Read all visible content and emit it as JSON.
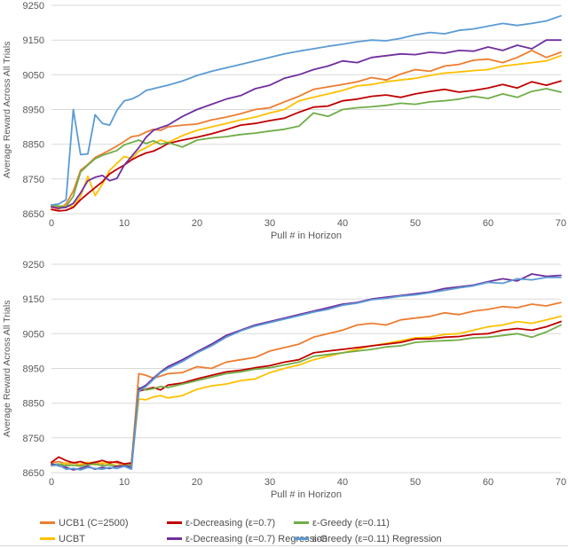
{
  "axis": {
    "tick_color": "#595959",
    "grid_color": "#d9d9d9",
    "label_color": "#595959"
  },
  "chart_data": [
    {
      "type": "line",
      "title": "",
      "xlabel": "Pull # in Horizon",
      "ylabel": "Average Reward Across All Trials",
      "xlim": [
        0,
        70
      ],
      "ylim": [
        8650,
        9250
      ],
      "xticks": [
        0,
        10,
        20,
        30,
        40,
        50,
        60,
        70
      ],
      "yticks": [
        8650,
        8750,
        8850,
        8950,
        9050,
        9150,
        9250
      ],
      "grid": "horizontal",
      "legend_position": "none",
      "x": [
        0,
        1,
        2,
        3,
        4,
        5,
        6,
        7,
        8,
        9,
        10,
        11,
        12,
        13,
        14,
        15,
        16,
        18,
        20,
        22,
        24,
        26,
        28,
        30,
        32,
        34,
        36,
        38,
        40,
        42,
        44,
        46,
        48,
        50,
        52,
        54,
        56,
        58,
        60,
        62,
        64,
        66,
        68,
        70
      ],
      "series": [
        {
          "name": "UCB1 (C=2500)",
          "color": "#ED7D31",
          "values": [
            8668,
            8663,
            8678,
            8715,
            8775,
            8792,
            8812,
            8822,
            8833,
            8845,
            8858,
            8872,
            8875,
            8885,
            8893,
            8890,
            8900,
            8905,
            8908,
            8920,
            8928,
            8938,
            8950,
            8955,
            8972,
            8988,
            9008,
            9015,
            9022,
            9030,
            9042,
            9035,
            9052,
            9065,
            9060,
            9075,
            9080,
            9092,
            9095,
            9085,
            9100,
            9120,
            9100,
            9115
          ]
        },
        {
          "name": "UCBT",
          "color": "#FFC000",
          "values": [
            8672,
            8670,
            8673,
            8670,
            8700,
            8758,
            8702,
            8735,
            8775,
            8795,
            8815,
            8808,
            8830,
            8840,
            8852,
            8862,
            8855,
            8875,
            8890,
            8900,
            8910,
            8920,
            8928,
            8940,
            8950,
            8975,
            8985,
            8995,
            9005,
            9018,
            9022,
            9030,
            9035,
            9040,
            9048,
            9055,
            9058,
            9062,
            9065,
            9075,
            9080,
            9085,
            9090,
            9105
          ]
        },
        {
          "name": "ε-Decreasing (ε=0.7)",
          "color": "#C00000",
          "values": [
            8662,
            8658,
            8660,
            8668,
            8690,
            8708,
            8725,
            8742,
            8765,
            8778,
            8790,
            8805,
            8816,
            8825,
            8830,
            8840,
            8852,
            8862,
            8870,
            8880,
            8892,
            8905,
            8910,
            8918,
            8925,
            8942,
            8957,
            8960,
            8975,
            8980,
            8988,
            8992,
            8985,
            8995,
            9002,
            9008,
            9000,
            9005,
            9012,
            9022,
            9012,
            9030,
            9020,
            9032
          ]
        },
        {
          "name": "ε-Greedy (ε=0.11)",
          "color": "#70AD47",
          "values": [
            8675,
            8672,
            8670,
            8700,
            8770,
            8790,
            8808,
            8818,
            8825,
            8832,
            8848,
            8855,
            8862,
            8852,
            8860,
            8850,
            8855,
            8842,
            8862,
            8868,
            8872,
            8878,
            8882,
            8888,
            8893,
            8902,
            8940,
            8930,
            8950,
            8955,
            8958,
            8962,
            8968,
            8965,
            8972,
            8975,
            8980,
            8988,
            8982,
            8995,
            8985,
            9002,
            9010,
            9000
          ]
        },
        {
          "name": "ε-Decreasing (ε=0.7) Regression",
          "color": "#7030A0",
          "values": [
            8670,
            8666,
            8668,
            8680,
            8710,
            8745,
            8755,
            8760,
            8745,
            8752,
            8790,
            8815,
            8840,
            8870,
            8890,
            8898,
            8905,
            8930,
            8950,
            8965,
            8980,
            8990,
            9010,
            9020,
            9040,
            9050,
            9065,
            9075,
            9090,
            9085,
            9100,
            9105,
            9110,
            9108,
            9115,
            9112,
            9120,
            9118,
            9130,
            9120,
            9135,
            9125,
            9150,
            9150
          ]
        },
        {
          "name": "ε-Greedy (ε=0.11) Regression",
          "color": "#5B9BD5",
          "values": [
            8675,
            8678,
            8690,
            8950,
            8820,
            8822,
            8935,
            8910,
            8905,
            8948,
            8975,
            8980,
            8990,
            9005,
            9010,
            9015,
            9020,
            9032,
            9048,
            9060,
            9070,
            9080,
            9090,
            9100,
            9110,
            9118,
            9125,
            9132,
            9138,
            9145,
            9150,
            9148,
            9155,
            9165,
            9172,
            9168,
            9178,
            9182,
            9190,
            9198,
            9192,
            9198,
            9205,
            9220
          ]
        }
      ]
    },
    {
      "type": "line",
      "title": "",
      "xlabel": "Pull # in Horizon",
      "ylabel": "Average Reward Across All Trials",
      "xlim": [
        0,
        70
      ],
      "ylim": [
        8650,
        9250
      ],
      "xticks": [
        0,
        10,
        20,
        30,
        40,
        50,
        60,
        70
      ],
      "yticks": [
        8650,
        8750,
        8850,
        8950,
        9050,
        9150,
        9250
      ],
      "grid": "horizontal",
      "legend_position": "bottom",
      "x": [
        0,
        1,
        2,
        3,
        4,
        5,
        6,
        7,
        8,
        9,
        10,
        11,
        12,
        13,
        14,
        15,
        16,
        18,
        20,
        22,
        24,
        26,
        28,
        30,
        32,
        34,
        36,
        38,
        40,
        42,
        44,
        46,
        48,
        50,
        52,
        54,
        56,
        58,
        60,
        62,
        64,
        66,
        68,
        70
      ],
      "series": [
        {
          "name": "UCB1 (C=2500)",
          "color": "#ED7D31",
          "values": [
            8678,
            8682,
            8675,
            8680,
            8672,
            8678,
            8680,
            8675,
            8682,
            8678,
            8672,
            8675,
            8935,
            8930,
            8922,
            8928,
            8935,
            8938,
            8955,
            8950,
            8968,
            8975,
            8982,
            9000,
            9010,
            9020,
            9040,
            9050,
            9060,
            9075,
            9080,
            9075,
            9090,
            9095,
            9100,
            9110,
            9105,
            9115,
            9120,
            9128,
            9125,
            9135,
            9130,
            9140
          ]
        },
        {
          "name": "UCBT",
          "color": "#FFC000",
          "values": [
            8675,
            8672,
            8678,
            8670,
            8675,
            8680,
            8672,
            8678,
            8675,
            8670,
            8673,
            8670,
            8862,
            8860,
            8868,
            8872,
            8865,
            8872,
            8890,
            8900,
            8905,
            8915,
            8920,
            8938,
            8950,
            8960,
            8975,
            8985,
            8995,
            9005,
            9015,
            9022,
            9030,
            9038,
            9040,
            9048,
            9050,
            9060,
            9070,
            9075,
            9085,
            9080,
            9090,
            9100
          ]
        },
        {
          "name": "ε-Decreasing (ε=0.7)",
          "color": "#C00000",
          "values": [
            8680,
            8695,
            8685,
            8678,
            8682,
            8675,
            8680,
            8685,
            8678,
            8682,
            8675,
            8678,
            8885,
            8890,
            8895,
            8888,
            8902,
            8908,
            8920,
            8930,
            8940,
            8945,
            8952,
            8958,
            8968,
            8975,
            8995,
            9000,
            9005,
            9010,
            9015,
            9020,
            9025,
            9035,
            9035,
            9040,
            9042,
            9048,
            9050,
            9060,
            9065,
            9060,
            9070,
            9085
          ]
        },
        {
          "name": "ε-Greedy (ε=0.11)",
          "color": "#70AD47",
          "values": [
            8672,
            8675,
            8670,
            8672,
            8668,
            8672,
            8675,
            8670,
            8672,
            8668,
            8670,
            8672,
            8895,
            8888,
            8892,
            8898,
            8895,
            8905,
            8915,
            8925,
            8935,
            8940,
            8948,
            8952,
            8960,
            8968,
            8985,
            8990,
            8995,
            9000,
            9005,
            9012,
            9015,
            9025,
            9028,
            9030,
            9032,
            9038,
            9040,
            9045,
            9050,
            9040,
            9055,
            9075
          ]
        },
        {
          "name": "ε-Decreasing (ε=0.7) Regression",
          "color": "#7030A0",
          "values": [
            8675,
            8670,
            8665,
            8658,
            8662,
            8668,
            8660,
            8665,
            8662,
            8668,
            8670,
            8665,
            8890,
            8902,
            8922,
            8940,
            8955,
            8975,
            8998,
            9020,
            9045,
            9060,
            9075,
            9085,
            9095,
            9105,
            9115,
            9125,
            9135,
            9140,
            9150,
            9155,
            9160,
            9165,
            9170,
            9180,
            9185,
            9190,
            9200,
            9208,
            9202,
            9222,
            9215,
            9218
          ]
        },
        {
          "name": "ε-Greedy (ε=0.11) Regression",
          "color": "#5B9BD5",
          "values": [
            8670,
            8672,
            8660,
            8662,
            8658,
            8665,
            8662,
            8660,
            8665,
            8662,
            8668,
            8660,
            8885,
            8898,
            8918,
            8938,
            8950,
            8970,
            8995,
            9015,
            9040,
            9058,
            9072,
            9082,
            9092,
            9102,
            9112,
            9120,
            9132,
            9138,
            9148,
            9152,
            9158,
            9162,
            9168,
            9175,
            9182,
            9188,
            9198,
            9195,
            9208,
            9205,
            9212,
            9212
          ]
        }
      ]
    }
  ],
  "legend": {
    "items": [
      {
        "label": "UCB1 (C=2500)",
        "color": "#ED7D31"
      },
      {
        "label": "UCBT",
        "color": "#FFC000"
      },
      {
        "label": "ε-Decreasing (ε=0.7)",
        "color": "#C00000"
      },
      {
        "label": "ε-Decreasing (ε=0.7) Regression",
        "color": "#7030A0"
      },
      {
        "label": "ε-Greedy (ε=0.11)",
        "color": "#70AD47"
      },
      {
        "label": "ε-Greedy (ε=0.11) Regression",
        "color": "#5B9BD5"
      }
    ]
  }
}
